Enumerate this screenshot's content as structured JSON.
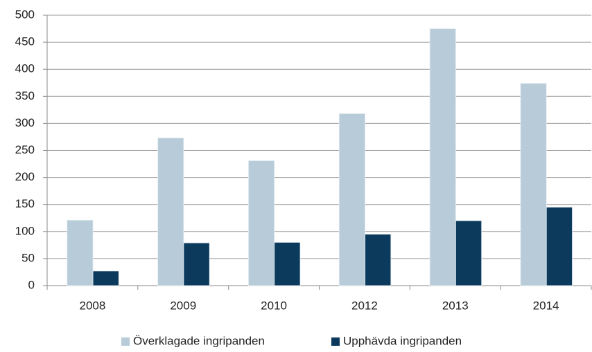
{
  "chart_data": {
    "type": "bar",
    "categories": [
      "2008",
      "2009",
      "2010",
      "2012",
      "2013",
      "2014"
    ],
    "series": [
      {
        "name": "Överklagade ingripanden",
        "color": "#b8cbd8",
        "values": [
          121,
          273,
          231,
          318,
          475,
          374
        ]
      },
      {
        "name": "Upphävda ingripanden",
        "color": "#0b3a5c",
        "values": [
          27,
          79,
          80,
          95,
          120,
          145
        ]
      }
    ],
    "ylim": [
      0,
      500
    ],
    "yticks": [
      0,
      50,
      100,
      150,
      200,
      250,
      300,
      350,
      400,
      450,
      500
    ],
    "grid": true,
    "legend": "bottom"
  }
}
